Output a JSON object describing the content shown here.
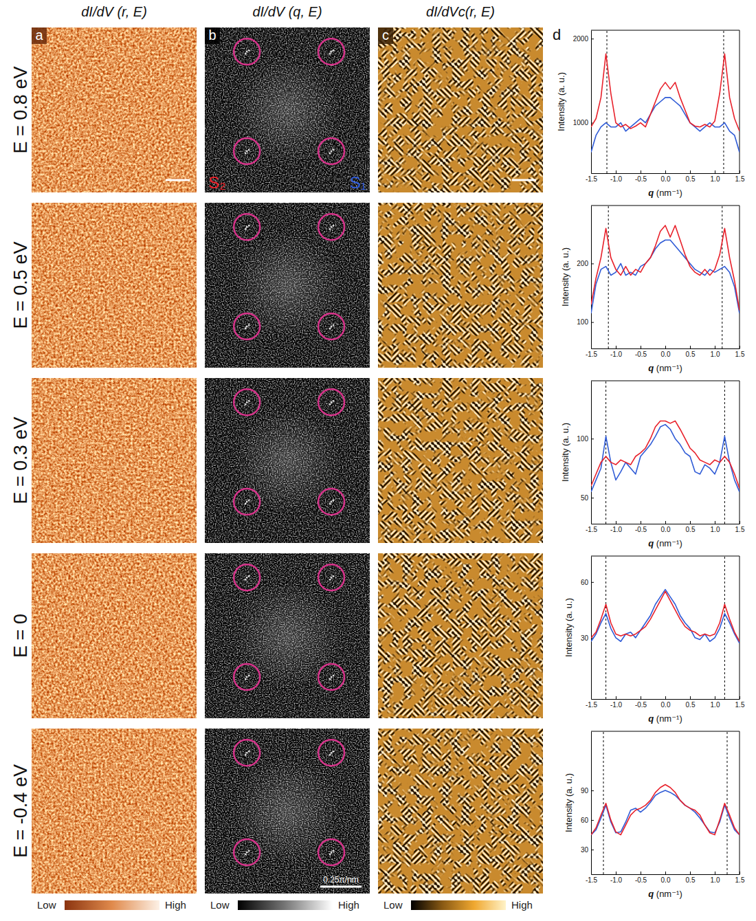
{
  "figure": {
    "column_titles": [
      "dI/dV (r, E)",
      "dI/dV (q, E)",
      "dI/dVc(r, E)"
    ],
    "panel_letters": [
      "a",
      "b",
      "c",
      "d"
    ],
    "row_labels": [
      "E = 0.8 eV",
      "E = 0.5 eV",
      "E = 0.3 eV",
      "E = 0",
      "E = -0.4 eV"
    ],
    "spot_labels": [
      {
        "text": "S₂",
        "color": "#e8202a"
      },
      {
        "text": "S₁",
        "color": "#2f5bd6"
      }
    ],
    "scale_bar_label": "0.25π/nm",
    "colorbar_labels": [
      "Low",
      "High"
    ]
  },
  "chart_data": [
    {
      "type": "line",
      "x_label": "q (nm⁻¹)",
      "y_label": "Intensity (a. u.)",
      "x": [
        -1.5,
        -1.4,
        -1.3,
        -1.2,
        -1.1,
        -1.0,
        -0.9,
        -0.8,
        -0.7,
        -0.6,
        -0.5,
        -0.4,
        -0.3,
        -0.2,
        -0.1,
        0.0,
        0.1,
        0.2,
        0.3,
        0.4,
        0.5,
        0.6,
        0.7,
        0.8,
        0.9,
        1.0,
        1.1,
        1.2,
        1.3,
        1.4,
        1.5
      ],
      "xlim": [
        -1.5,
        1.5
      ],
      "xticks": [
        -1.5,
        {
          "value": -1,
          "label": "-1.0"
        },
        -0.5,
        {
          "value": 0,
          "label": "0.0"
        },
        0.5,
        {
          "value": 1,
          "label": "1.0"
        },
        1.5
      ],
      "ylim": [
        400,
        2100
      ],
      "yticks": [
        1000,
        2000
      ],
      "vlines": [
        -1.18,
        1.18
      ],
      "series": [
        {
          "color": "#2f5bd6",
          "values": [
            650,
            850,
            950,
            1000,
            950,
            950,
            1000,
            900,
            950,
            1000,
            1050,
            1000,
            1100,
            1200,
            1250,
            1300,
            1300,
            1250,
            1200,
            1100,
            1000,
            950,
            900,
            950,
            1000,
            950,
            950,
            1000,
            900,
            850,
            650
          ]
        },
        {
          "color": "#e8202a",
          "values": [
            950,
            1050,
            1300,
            1820,
            1350,
            1000,
            950,
            980,
            930,
            960,
            1000,
            950,
            1100,
            1250,
            1400,
            1480,
            1400,
            1480,
            1300,
            1150,
            1000,
            960,
            950,
            980,
            950,
            1020,
            1350,
            1820,
            1300,
            1050,
            900
          ]
        }
      ]
    },
    {
      "type": "line",
      "x_label": "q (nm⁻¹)",
      "y_label": "Intensity (a. u.)",
      "x": [
        -1.5,
        -1.4,
        -1.3,
        -1.2,
        -1.1,
        -1.0,
        -0.9,
        -0.8,
        -0.7,
        -0.6,
        -0.5,
        -0.4,
        -0.3,
        -0.2,
        -0.1,
        0.0,
        0.1,
        0.2,
        0.3,
        0.4,
        0.5,
        0.6,
        0.7,
        0.8,
        0.9,
        1.0,
        1.1,
        1.2,
        1.3,
        1.4,
        1.5
      ],
      "xlim": [
        -1.5,
        1.5
      ],
      "xticks": [
        -1.5,
        {
          "value": -1,
          "label": "-1.0"
        },
        -0.5,
        {
          "value": 0,
          "label": "0.0"
        },
        0.5,
        {
          "value": 1,
          "label": "1.0"
        },
        1.5
      ],
      "ylim": [
        55,
        299
      ],
      "yticks": [
        100,
        200
      ],
      "vlines": [
        -1.15,
        1.15
      ],
      "series": [
        {
          "color": "#2f5bd6",
          "values": [
            115,
            165,
            190,
            195,
            180,
            185,
            200,
            180,
            185,
            180,
            195,
            200,
            210,
            225,
            235,
            240,
            240,
            230,
            220,
            210,
            200,
            190,
            185,
            180,
            190,
            185,
            190,
            195,
            185,
            160,
            115
          ]
        },
        {
          "color": "#e8202a",
          "values": [
            130,
            175,
            210,
            260,
            210,
            190,
            180,
            195,
            180,
            190,
            185,
            200,
            210,
            230,
            255,
            265,
            245,
            265,
            240,
            215,
            195,
            185,
            180,
            190,
            180,
            190,
            215,
            260,
            210,
            170,
            120
          ]
        }
      ]
    },
    {
      "type": "line",
      "x_label": "q (nm⁻¹)",
      "y_label": "Intensity (a. u.)",
      "x": [
        -1.5,
        -1.4,
        -1.3,
        -1.2,
        -1.1,
        -1.0,
        -0.9,
        -0.8,
        -0.7,
        -0.6,
        -0.5,
        -0.4,
        -0.3,
        -0.2,
        -0.1,
        0.0,
        0.1,
        0.2,
        0.3,
        0.4,
        0.5,
        0.6,
        0.7,
        0.8,
        0.9,
        1.0,
        1.1,
        1.2,
        1.3,
        1.4,
        1.5
      ],
      "xlim": [
        -1.5,
        1.5
      ],
      "xticks": [
        -1.5,
        {
          "value": -1,
          "label": "-1.0"
        },
        -0.5,
        {
          "value": 0,
          "label": "0.0"
        },
        0.5,
        {
          "value": 1,
          "label": "1.0"
        },
        1.5
      ],
      "ylim": [
        28,
        149
      ],
      "yticks": [
        50,
        100
      ],
      "vlines": [
        -1.2,
        1.2
      ],
      "series": [
        {
          "color": "#2f5bd6",
          "values": [
            55,
            65,
            75,
            102,
            80,
            65,
            72,
            80,
            75,
            70,
            85,
            90,
            95,
            102,
            110,
            112,
            108,
            100,
            95,
            88,
            85,
            72,
            70,
            78,
            75,
            70,
            80,
            102,
            80,
            65,
            55
          ]
        },
        {
          "color": "#e8202a",
          "values": [
            60,
            70,
            80,
            85,
            80,
            78,
            82,
            80,
            78,
            85,
            88,
            92,
            100,
            110,
            115,
            115,
            113,
            115,
            108,
            100,
            92,
            88,
            82,
            80,
            78,
            82,
            80,
            85,
            80,
            70,
            58
          ]
        }
      ]
    },
    {
      "type": "line",
      "x_label": "q (nm⁻¹)",
      "y_label": "Intensity (a. u.)",
      "x": [
        -1.5,
        -1.4,
        -1.3,
        -1.2,
        -1.1,
        -1.0,
        -0.9,
        -0.8,
        -0.7,
        -0.6,
        -0.5,
        -0.4,
        -0.3,
        -0.2,
        -0.1,
        0.0,
        0.1,
        0.2,
        0.3,
        0.4,
        0.5,
        0.6,
        0.7,
        0.8,
        0.9,
        1.0,
        1.1,
        1.2,
        1.3,
        1.4,
        1.5
      ],
      "xlim": [
        -1.5,
        1.5
      ],
      "xticks": [
        -1.5,
        {
          "value": -1,
          "label": "-1.0"
        },
        -0.5,
        {
          "value": 0,
          "label": "0.0"
        },
        0.5,
        {
          "value": 1,
          "label": "1.0"
        },
        1.5
      ],
      "ylim": [
        -3,
        74
      ],
      "yticks": [
        30,
        60
      ],
      "vlines": [
        -1.2,
        1.2
      ],
      "series": [
        {
          "color": "#2f5bd6",
          "values": [
            28,
            32,
            38,
            43,
            35,
            30,
            28,
            32,
            33,
            30,
            34,
            38,
            42,
            48,
            52,
            56,
            52,
            48,
            42,
            38,
            35,
            30,
            29,
            32,
            28,
            30,
            35,
            43,
            38,
            32,
            27
          ]
        },
        {
          "color": "#e8202a",
          "values": [
            30,
            33,
            40,
            48,
            38,
            32,
            31,
            32,
            31,
            32,
            34,
            36,
            40,
            45,
            50,
            55,
            50,
            45,
            40,
            36,
            34,
            33,
            31,
            32,
            31,
            32,
            38,
            48,
            40,
            33,
            28
          ]
        }
      ]
    },
    {
      "type": "line",
      "x_label": "q (nm⁻¹)",
      "y_label": "Intensity (a. u.)",
      "x": [
        -1.5,
        -1.4,
        -1.3,
        -1.2,
        -1.1,
        -1.0,
        -0.9,
        -0.8,
        -0.7,
        -0.6,
        -0.5,
        -0.4,
        -0.3,
        -0.2,
        -0.1,
        0.0,
        0.1,
        0.2,
        0.3,
        0.4,
        0.5,
        0.6,
        0.7,
        0.8,
        0.9,
        1.0,
        1.1,
        1.2,
        1.3,
        1.4,
        1.5
      ],
      "xlim": [
        -1.5,
        1.5
      ],
      "xticks": [
        -1.5,
        {
          "value": -1,
          "label": "-1.0"
        },
        -0.5,
        {
          "value": 0,
          "label": "0.0"
        },
        0.5,
        {
          "value": 1,
          "label": "1.0"
        },
        1.5
      ],
      "ylim": [
        5,
        150
      ],
      "yticks": [
        30,
        60,
        90
      ],
      "vlines": [
        -1.25,
        1.25
      ],
      "series": [
        {
          "color": "#2f5bd6",
          "values": [
            45,
            50,
            62,
            75,
            58,
            47,
            48,
            58,
            70,
            72,
            68,
            72,
            78,
            85,
            88,
            90,
            88,
            85,
            80,
            75,
            72,
            68,
            62,
            55,
            48,
            47,
            58,
            75,
            62,
            50,
            45
          ]
        },
        {
          "color": "#e8202a",
          "values": [
            45,
            52,
            65,
            77,
            60,
            48,
            45,
            55,
            65,
            70,
            72,
            75,
            80,
            88,
            93,
            96,
            93,
            88,
            80,
            75,
            72,
            70,
            65,
            55,
            47,
            45,
            60,
            77,
            65,
            52,
            45
          ]
        }
      ]
    }
  ]
}
